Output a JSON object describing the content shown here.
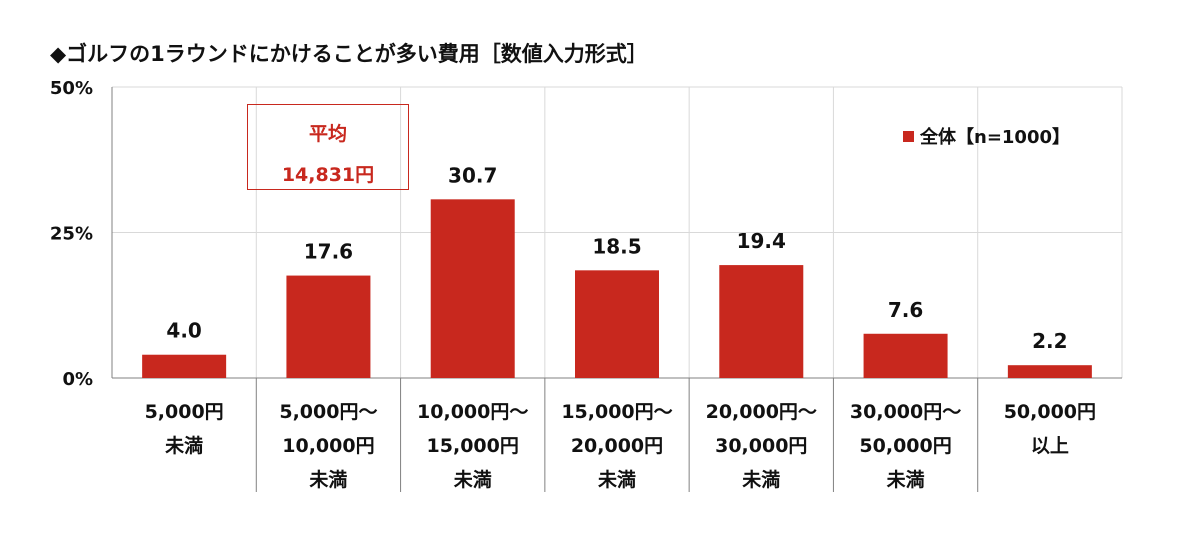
{
  "title": "◆ゴルフの1ラウンドにかけることが多い費用［数値入力形式］",
  "colors": {
    "bar": "#c8281e",
    "grid": "#d9d9d9",
    "axis": "#808080"
  },
  "annotation": {
    "line1": "平均",
    "line2": "14,831円"
  },
  "legend": {
    "label": "全体【n=1000】"
  },
  "chart_data": {
    "type": "bar",
    "title": "◆ゴルフの1ラウンドにかけることが多い費用［数値入力形式］",
    "xlabel": "",
    "ylabel": "",
    "ylim": [
      0,
      50
    ],
    "yticks": [
      "0%",
      "25%",
      "50%"
    ],
    "grid": true,
    "legend_position": "top-right",
    "categories": [
      [
        "5,000円",
        "未満"
      ],
      [
        "5,000円～",
        "10,000円",
        "未満"
      ],
      [
        "10,000円～",
        "15,000円",
        "未満"
      ],
      [
        "15,000円～",
        "20,000円",
        "未満"
      ],
      [
        "20,000円～",
        "30,000円",
        "未満"
      ],
      [
        "30,000円～",
        "50,000円",
        "未満"
      ],
      [
        "50,000円",
        "以上"
      ]
    ],
    "series": [
      {
        "name": "全体【n=1000】",
        "values": [
          4.0,
          17.6,
          30.7,
          18.5,
          19.4,
          7.6,
          2.2
        ]
      }
    ],
    "value_labels": [
      "4.0",
      "17.6",
      "30.7",
      "18.5",
      "19.4",
      "7.6",
      "2.2"
    ]
  }
}
